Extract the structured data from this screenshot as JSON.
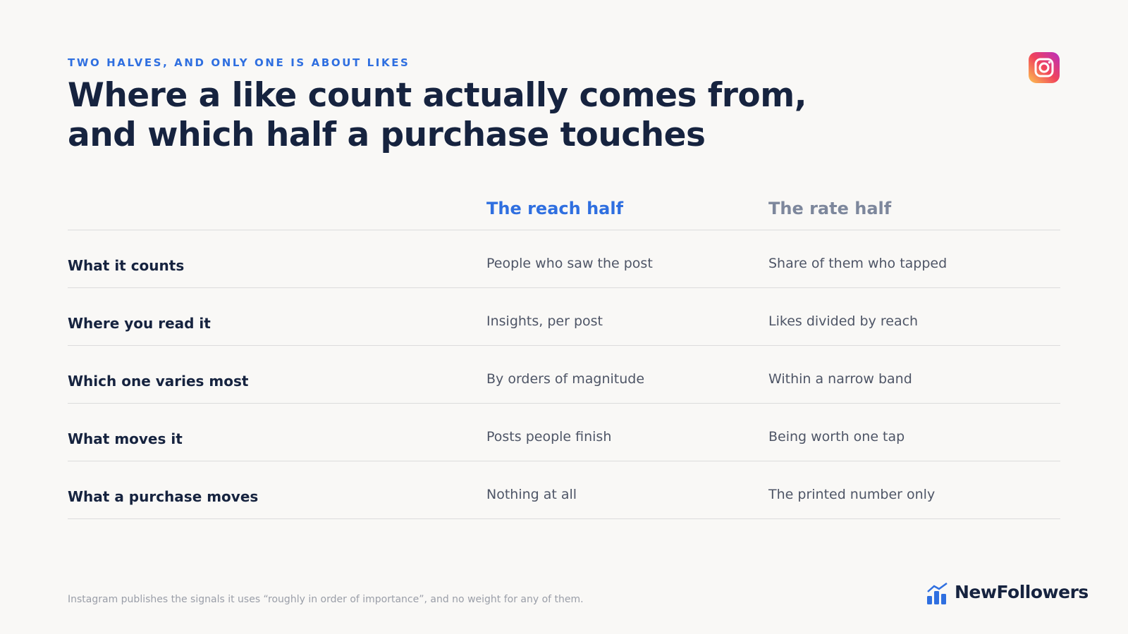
{
  "header": {
    "eyebrow": "TWO HALVES, AND ONLY ONE IS ABOUT LIKES",
    "title_lines": [
      "Where a like count actually comes from,",
      "and which half a purchase touches"
    ]
  },
  "table": {
    "columns": [
      "The reach half",
      "The rate half"
    ],
    "rows": [
      {
        "label": "What it counts",
        "cells": [
          "People who saw the post",
          "Share of them who tapped"
        ]
      },
      {
        "label": "Where you read it",
        "cells": [
          "Insights, per post",
          "Likes divided by reach"
        ]
      },
      {
        "label": "Which one varies most",
        "cells": [
          "By orders of magnitude",
          "Within a narrow band"
        ]
      },
      {
        "label": "What moves it",
        "cells": [
          "Posts people finish",
          "Being worth one tap"
        ]
      },
      {
        "label": "What a purchase moves",
        "cells": [
          "Nothing at all",
          "The printed number only"
        ]
      }
    ]
  },
  "footer": {
    "note": "Instagram publishes the signals it uses “roughly in order of importance”, and no weight for any of them.",
    "brand": "NewFollowers"
  }
}
